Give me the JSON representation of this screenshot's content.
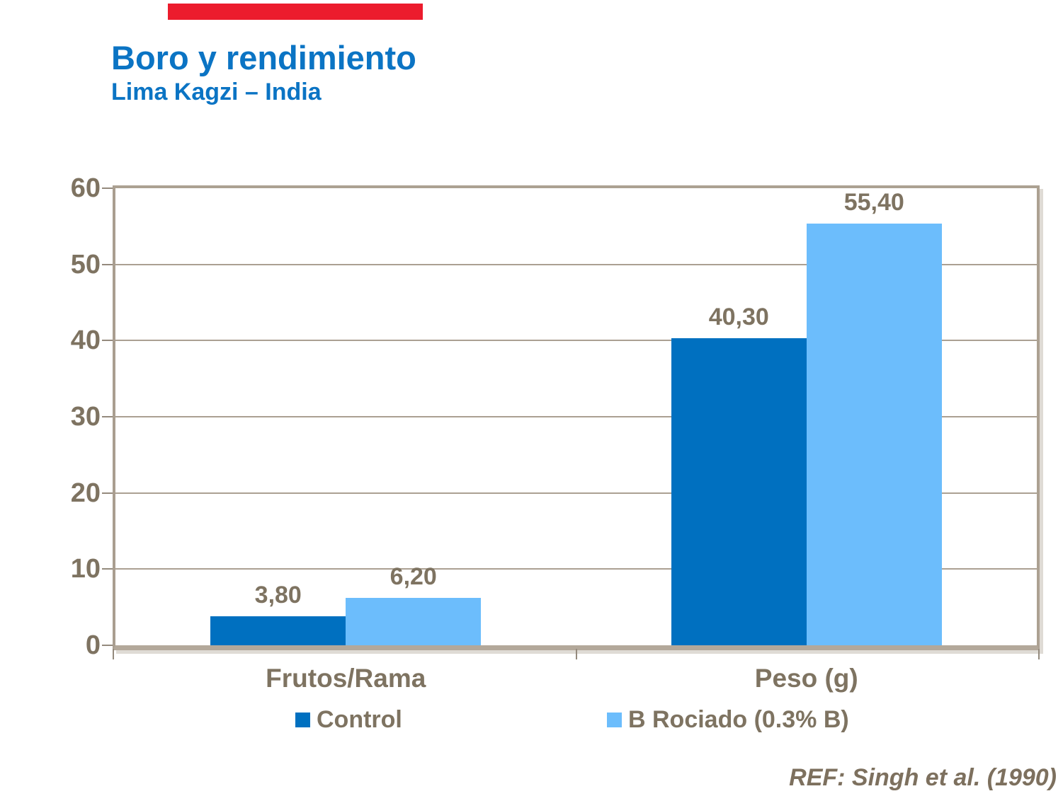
{
  "slide": {
    "title": "Boro y rendimiento",
    "subtitle": "Lima Kagzi – India",
    "reference": "REF: Singh et al. (1990)"
  },
  "colors": {
    "accent_bar_red": "#EC1C2D",
    "title_blue": "#0B74C4",
    "series_control_blue": "#0070C0",
    "series_rociado_light_blue": "#6CBDFC",
    "label_brown_gray": "#7E7361",
    "reference_brown": "#7D705E",
    "gridline_tan": "#ABA092",
    "axis_frame_tan": "#ACA192"
  },
  "chart_data": {
    "type": "bar",
    "title": "Boro y rendimiento",
    "subtitle": "Lima Kagzi – India",
    "categories": [
      "Frutos/Rama",
      "Peso (g)"
    ],
    "series": [
      {
        "name": "Control",
        "color": "#0070C0",
        "values": [
          3.8,
          40.3
        ],
        "value_labels": [
          "3,80",
          "40,30"
        ]
      },
      {
        "name": "B Rociado (0.3% B)",
        "color": "#6CBDFC",
        "values": [
          6.2,
          55.4
        ],
        "value_labels": [
          "6,20",
          "55,40"
        ]
      }
    ],
    "ylim": [
      0,
      60
    ],
    "yticks": [
      0,
      10,
      20,
      30,
      40,
      50,
      60
    ],
    "xlabel": "",
    "ylabel": "",
    "grid": true,
    "legend_position": "bottom",
    "annotation": "REF: Singh et al. (1990)"
  }
}
